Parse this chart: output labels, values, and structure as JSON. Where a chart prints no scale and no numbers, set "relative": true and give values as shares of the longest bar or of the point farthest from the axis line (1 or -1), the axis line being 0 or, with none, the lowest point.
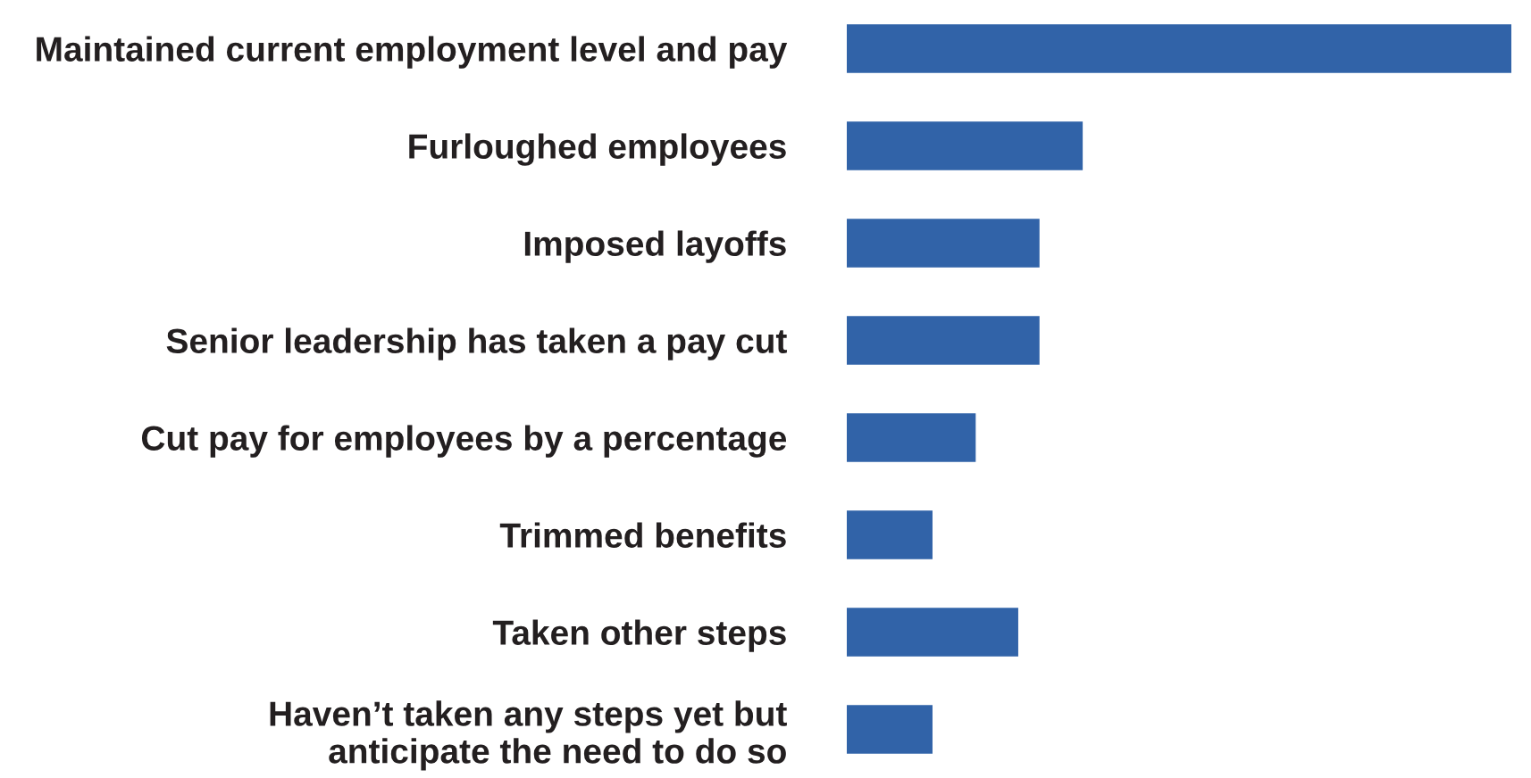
{
  "chart_data": {
    "type": "bar",
    "orientation": "horizontal",
    "relative": true,
    "categories": [
      "Maintained current employment level and pay",
      "Furloughed employees",
      "Imposed layoffs",
      "Senior leadership has taken a pay cut",
      "Cut pay for employees by a percentage",
      "Trimmed benefits",
      "Taken other steps",
      "Haven’t taken any steps yet but\nanticipate the need to do so"
    ],
    "values": [
      1,
      0.355,
      0.29,
      0.29,
      0.194,
      0.129,
      0.258,
      0.129
    ],
    "color": "#3163a8"
  }
}
